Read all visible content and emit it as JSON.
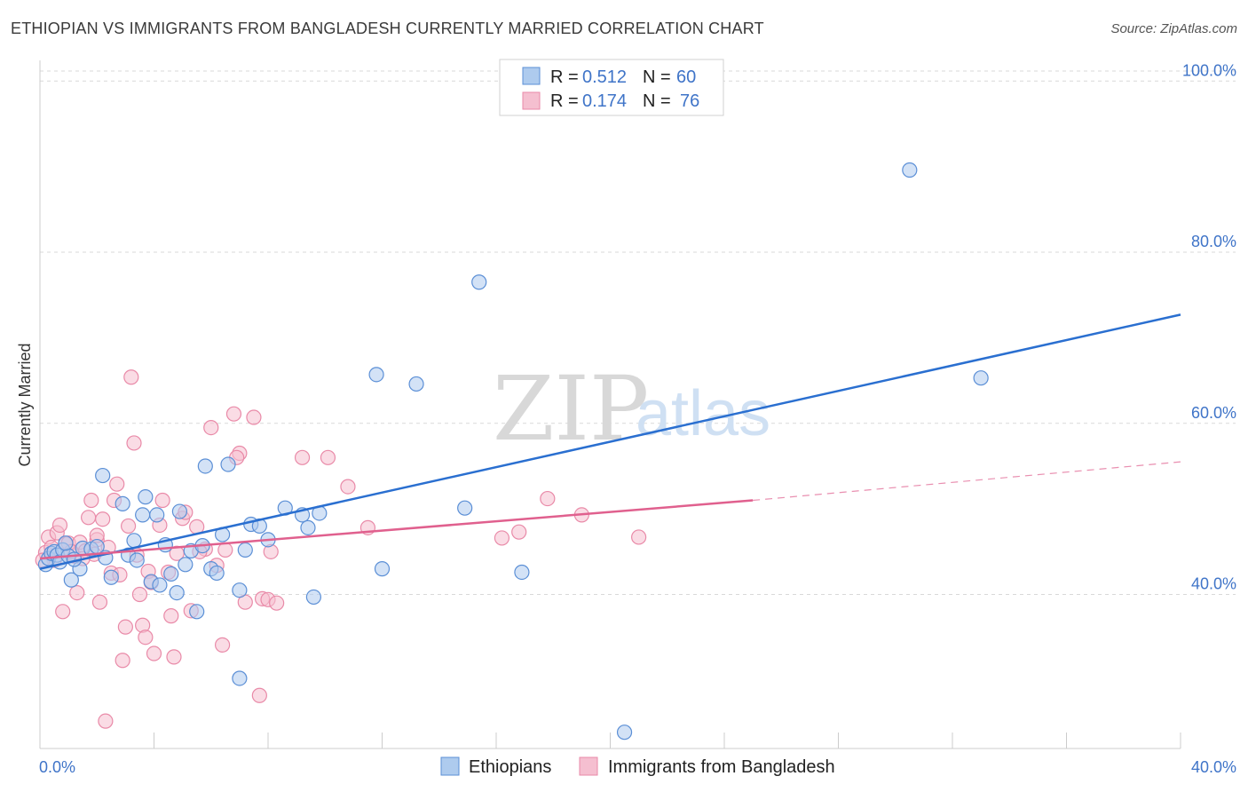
{
  "title": "ETHIOPIAN VS IMMIGRANTS FROM BANGLADESH CURRENTLY MARRIED CORRELATION CHART",
  "source": "Source: ZipAtlas.com",
  "watermark": {
    "part1": "ZIP",
    "part2": "atlas"
  },
  "colors": {
    "blue_fill": "#aecbee",
    "blue_stroke": "#5b8fd6",
    "blue_line": "#2a6fd0",
    "pink_fill": "#f5bfd0",
    "pink_stroke": "#e98aa8",
    "pink_line": "#e0608e",
    "grid": "#d9d9d9",
    "tick_label": "#3f74c8"
  },
  "legend_top": {
    "rows": [
      {
        "r_label": "R = ",
        "r_value": "0.512",
        "n_label": "N = ",
        "n_value": "60"
      },
      {
        "r_label": "R = ",
        "r_value": "0.174",
        "n_label": "N = ",
        "n_value": "76"
      }
    ]
  },
  "legend_bottom": {
    "items": [
      "Ethiopians",
      "Immigrants from Bangladesh"
    ]
  },
  "chart_data": {
    "type": "scatter",
    "ylabel": "Currently Married",
    "xlabel": "",
    "xlim": [
      0,
      40
    ],
    "ylim": [
      22,
      102
    ],
    "x_tick_labels": [
      "0.0%",
      "40.0%"
    ],
    "y_ticks": [
      40,
      60,
      80,
      100
    ],
    "y_tick_labels": [
      "40.0%",
      "60.0%",
      "80.0%",
      "100.0%"
    ],
    "grid": "horizontal dashed",
    "legend": "top-center and bottom",
    "series": [
      {
        "name": "Ethiopians",
        "color": "blue",
        "trend": {
          "x0": 0,
          "y0": 43.0,
          "x1": 40,
          "y1": 72.7,
          "dashed_from": null
        },
        "points": [
          [
            0.2,
            43.5
          ],
          [
            0.3,
            44.2
          ],
          [
            0.4,
            44.8
          ],
          [
            0.5,
            45.0
          ],
          [
            0.6,
            44.6
          ],
          [
            0.7,
            43.8
          ],
          [
            0.8,
            45.2
          ],
          [
            1.0,
            44.5
          ],
          [
            1.1,
            41.7
          ],
          [
            1.4,
            43.0
          ],
          [
            1.5,
            45.4
          ],
          [
            1.8,
            45.3
          ],
          [
            2.0,
            45.6
          ],
          [
            2.2,
            53.9
          ],
          [
            2.3,
            44.3
          ],
          [
            2.5,
            42.0
          ],
          [
            2.9,
            50.6
          ],
          [
            3.1,
            44.6
          ],
          [
            3.3,
            46.3
          ],
          [
            3.4,
            44.0
          ],
          [
            3.6,
            49.3
          ],
          [
            3.7,
            51.4
          ],
          [
            3.9,
            41.5
          ],
          [
            4.1,
            49.3
          ],
          [
            4.2,
            41.1
          ],
          [
            4.4,
            45.8
          ],
          [
            4.6,
            42.4
          ],
          [
            4.8,
            40.2
          ],
          [
            4.9,
            49.7
          ],
          [
            5.1,
            43.5
          ],
          [
            5.3,
            45.1
          ],
          [
            5.5,
            38.0
          ],
          [
            5.7,
            45.7
          ],
          [
            5.8,
            55.0
          ],
          [
            6.0,
            43.0
          ],
          [
            6.2,
            42.5
          ],
          [
            6.4,
            47.0
          ],
          [
            6.6,
            55.2
          ],
          [
            7.0,
            40.5
          ],
          [
            7.2,
            45.2
          ],
          [
            7.4,
            48.2
          ],
          [
            7.7,
            48.0
          ],
          [
            8.0,
            46.4
          ],
          [
            8.6,
            50.1
          ],
          [
            9.2,
            49.3
          ],
          [
            9.4,
            47.8
          ],
          [
            9.6,
            39.7
          ],
          [
            9.8,
            49.5
          ],
          [
            11.8,
            65.7
          ],
          [
            12.0,
            43.0
          ],
          [
            13.2,
            64.6
          ],
          [
            14.9,
            50.1
          ],
          [
            15.4,
            76.5
          ],
          [
            16.9,
            42.6
          ],
          [
            20.5,
            23.9
          ],
          [
            7.0,
            30.2
          ],
          [
            30.5,
            89.6
          ],
          [
            33.0,
            65.3
          ],
          [
            1.2,
            44.1
          ],
          [
            0.9,
            46.0
          ]
        ]
      },
      {
        "name": "Immigrants from Bangladesh",
        "color": "pink",
        "trend": {
          "x0": 0,
          "y0": 44.2,
          "x1": 25,
          "y1": 51.0,
          "dashed_from": 25,
          "dashed_to_x": 40,
          "dashed_to_y": 55.5
        },
        "points": [
          [
            0.2,
            44.9
          ],
          [
            0.3,
            46.7
          ],
          [
            0.4,
            45.5
          ],
          [
            0.5,
            44.0
          ],
          [
            0.6,
            47.2
          ],
          [
            0.7,
            48.1
          ],
          [
            0.8,
            38.0
          ],
          [
            0.9,
            45.9
          ],
          [
            1.0,
            46.0
          ],
          [
            1.2,
            44.5
          ],
          [
            1.3,
            40.2
          ],
          [
            1.4,
            46.1
          ],
          [
            1.6,
            45.1
          ],
          [
            1.7,
            49.0
          ],
          [
            1.8,
            51.0
          ],
          [
            1.9,
            44.7
          ],
          [
            2.0,
            46.4
          ],
          [
            2.1,
            39.1
          ],
          [
            2.2,
            48.8
          ],
          [
            2.3,
            25.2
          ],
          [
            2.5,
            42.5
          ],
          [
            2.6,
            51.0
          ],
          [
            2.7,
            52.9
          ],
          [
            2.8,
            42.3
          ],
          [
            2.9,
            32.3
          ],
          [
            3.0,
            36.2
          ],
          [
            3.2,
            65.4
          ],
          [
            3.3,
            57.7
          ],
          [
            3.4,
            44.6
          ],
          [
            3.5,
            40.0
          ],
          [
            3.6,
            36.4
          ],
          [
            3.7,
            35.0
          ],
          [
            3.8,
            42.7
          ],
          [
            3.9,
            41.4
          ],
          [
            4.0,
            33.1
          ],
          [
            4.2,
            48.1
          ],
          [
            4.3,
            51.0
          ],
          [
            4.5,
            42.6
          ],
          [
            4.6,
            37.5
          ],
          [
            4.7,
            32.7
          ],
          [
            4.8,
            44.8
          ],
          [
            5.0,
            48.9
          ],
          [
            5.1,
            49.6
          ],
          [
            5.3,
            38.1
          ],
          [
            5.5,
            47.9
          ],
          [
            5.8,
            45.3
          ],
          [
            6.0,
            59.5
          ],
          [
            6.2,
            43.4
          ],
          [
            6.4,
            34.1
          ],
          [
            6.5,
            45.2
          ],
          [
            6.8,
            61.1
          ],
          [
            7.0,
            56.5
          ],
          [
            7.2,
            39.1
          ],
          [
            7.5,
            60.7
          ],
          [
            7.7,
            28.2
          ],
          [
            7.8,
            39.5
          ],
          [
            8.0,
            39.4
          ],
          [
            8.1,
            45.0
          ],
          [
            8.3,
            39.0
          ],
          [
            9.2,
            56.0
          ],
          [
            10.1,
            56.0
          ],
          [
            10.8,
            52.6
          ],
          [
            11.5,
            47.8
          ],
          [
            16.2,
            46.6
          ],
          [
            16.8,
            47.3
          ],
          [
            17.8,
            51.2
          ],
          [
            19.0,
            49.3
          ],
          [
            21.0,
            46.7
          ],
          [
            1.5,
            44.2
          ],
          [
            2.4,
            45.5
          ],
          [
            0.1,
            44.0
          ],
          [
            1.1,
            45.0
          ],
          [
            3.1,
            48.0
          ],
          [
            5.6,
            45.0
          ],
          [
            2.0,
            46.9
          ],
          [
            6.9,
            56.0
          ]
        ]
      }
    ]
  }
}
